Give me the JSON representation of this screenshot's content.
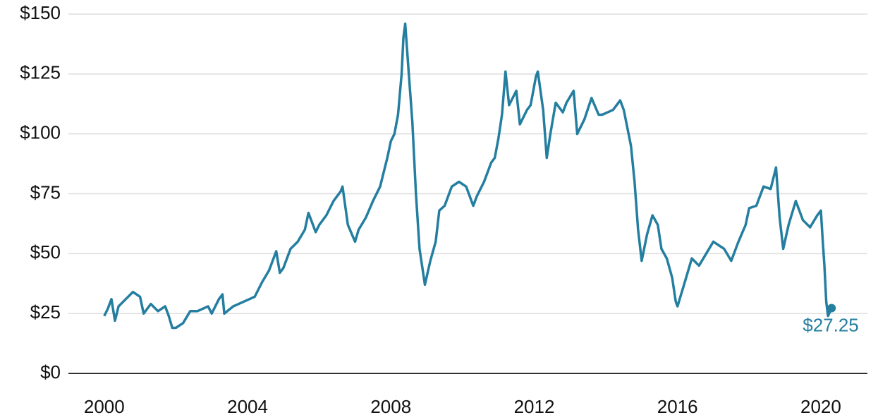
{
  "chart_data": {
    "type": "line",
    "x": [
      2000.0,
      2000.1,
      2000.2,
      2000.3,
      2000.4,
      2000.6,
      2000.8,
      2001.0,
      2001.1,
      2001.3,
      2001.5,
      2001.7,
      2001.8,
      2001.9,
      2002.0,
      2002.2,
      2002.4,
      2002.6,
      2002.9,
      2003.0,
      2003.2,
      2003.3,
      2003.35,
      2003.6,
      2003.9,
      2004.2,
      2004.4,
      2004.6,
      2004.8,
      2004.9,
      2005.0,
      2005.2,
      2005.4,
      2005.6,
      2005.7,
      2005.9,
      2006.0,
      2006.2,
      2006.4,
      2006.6,
      2006.65,
      2006.8,
      2007.0,
      2007.1,
      2007.3,
      2007.5,
      2007.7,
      2007.9,
      2008.0,
      2008.1,
      2008.2,
      2008.3,
      2008.35,
      2008.4,
      2008.5,
      2008.6,
      2008.7,
      2008.8,
      2008.9,
      2008.95,
      2009.1,
      2009.25,
      2009.35,
      2009.5,
      2009.7,
      2009.9,
      2010.1,
      2010.3,
      2010.4,
      2010.6,
      2010.8,
      2010.9,
      2011.0,
      2011.1,
      2011.2,
      2011.3,
      2011.5,
      2011.6,
      2011.8,
      2011.9,
      2012.05,
      2012.1,
      2012.25,
      2012.35,
      2012.45,
      2012.6,
      2012.8,
      2012.9,
      2013.1,
      2013.2,
      2013.4,
      2013.6,
      2013.8,
      2013.9,
      2014.2,
      2014.4,
      2014.5,
      2014.7,
      2014.8,
      2014.9,
      2015.0,
      2015.15,
      2015.3,
      2015.45,
      2015.55,
      2015.7,
      2015.85,
      2015.95,
      2016.0,
      2016.2,
      2016.4,
      2016.6,
      2016.8,
      2017.0,
      2017.3,
      2017.5,
      2017.7,
      2017.9,
      2018.0,
      2018.2,
      2018.4,
      2018.6,
      2018.75,
      2018.85,
      2018.95,
      2019.1,
      2019.3,
      2019.5,
      2019.7,
      2019.9,
      2020.0,
      2020.05,
      2020.1,
      2020.15,
      2020.2,
      2020.3
    ],
    "series": [
      {
        "color": "#247ea0",
        "values": [
          24,
          27,
          31,
          22,
          28,
          31,
          34,
          32,
          25,
          29,
          26,
          28,
          24,
          19,
          19,
          21,
          26,
          26,
          28,
          25,
          31,
          33,
          25,
          28,
          30,
          32,
          38,
          43,
          51,
          42,
          44,
          52,
          55,
          60,
          67,
          59,
          62,
          66,
          72,
          76,
          78,
          62,
          55,
          60,
          65,
          72,
          78,
          90,
          97,
          100,
          108,
          125,
          140,
          146,
          125,
          105,
          75,
          52,
          42,
          37,
          47,
          55,
          68,
          70,
          78,
          80,
          78,
          70,
          74,
          80,
          88,
          90,
          98,
          108,
          126,
          112,
          118,
          104,
          110,
          112,
          124,
          126,
          110,
          90,
          100,
          113,
          109,
          113,
          118,
          100,
          106,
          115,
          108,
          108,
          110,
          114,
          110,
          95,
          80,
          60,
          47,
          58,
          66,
          62,
          52,
          48,
          40,
          30,
          28,
          38,
          48,
          45,
          50,
          55,
          52,
          47,
          55,
          62,
          69,
          70,
          78,
          77,
          86,
          65,
          52,
          62,
          72,
          64,
          61,
          66,
          68,
          56,
          45,
          30,
          24,
          27.25
        ]
      }
    ],
    "end_label": "$27.25",
    "xlim": [
      1999,
      2021.3
    ],
    "xticks": [
      2000,
      2004,
      2008,
      2012,
      2016,
      2020
    ],
    "ylim": [
      0,
      150
    ],
    "yticks": [
      {
        "value": 0,
        "label": "$0"
      },
      {
        "value": 25,
        "label": "$25"
      },
      {
        "value": 50,
        "label": "$50"
      },
      {
        "value": 75,
        "label": "$75"
      },
      {
        "value": 100,
        "label": "$100"
      },
      {
        "value": 125,
        "label": "$125"
      },
      {
        "value": 150,
        "label": "$150"
      }
    ],
    "grid": true
  }
}
